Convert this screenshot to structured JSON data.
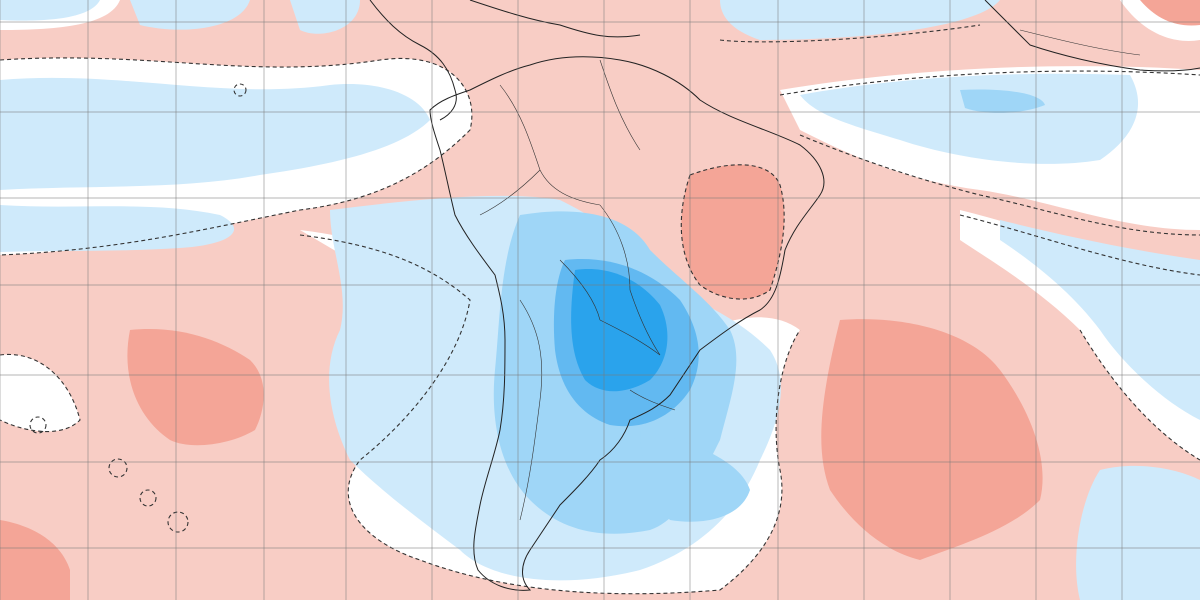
{
  "map": {
    "projection": "cylindrical",
    "colors": {
      "background_white": "#ffffff",
      "warm_light": "#f8cdc5",
      "warm_mid": "#f4a597",
      "warm_strong": "#ee8a7c",
      "cool_light": "#cfeafb",
      "cool_mid": "#9fd6f7",
      "cool_strong": "#62b9f1",
      "cool_deep": "#2aa3ec",
      "coastline": "#222222",
      "contour": "#333333",
      "grid": "#7a7a7a"
    },
    "features": [
      "anomaly-shading",
      "zero-contour-dashed",
      "south-america-coastline",
      "africa-west-coast",
      "country-borders",
      "lat-lon-grid"
    ]
  }
}
